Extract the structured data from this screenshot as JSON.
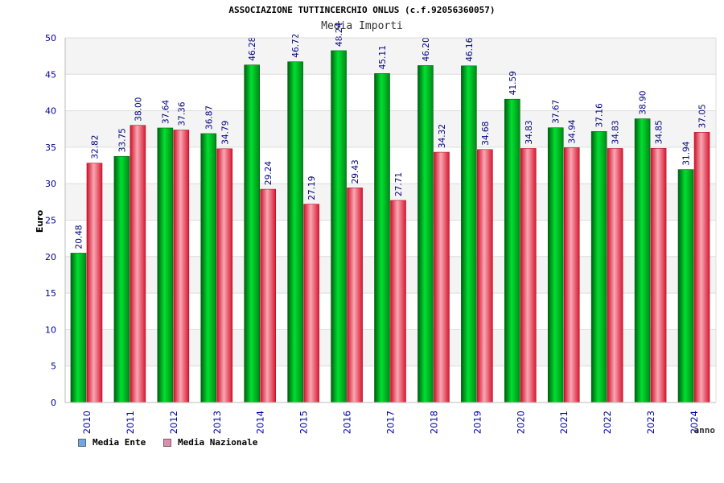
{
  "colors": {
    "ente": "#00b020",
    "nazionale": "#e8283c",
    "legend_ente": "#6fa8e8",
    "legend_nazionale": "#e08cb0",
    "axis_text": "#0000a0",
    "label_text": "#000080"
  },
  "chart_data": {
    "type": "bar",
    "title": "ASSOCIAZIONE TUTTINCERCHIO ONLUS (c.f.92056360057)",
    "subtitle": "Media Importi",
    "xlabel": "anno",
    "ylabel": "Euro",
    "ylim": [
      0,
      50
    ],
    "yticks": [
      "0",
      "5",
      "10",
      "15",
      "20",
      "25",
      "30",
      "35",
      "40",
      "45",
      "50"
    ],
    "grid": true,
    "legend_position": "bottom-left",
    "categories": [
      "2010",
      "2011",
      "2012",
      "2013",
      "2014",
      "2015",
      "2016",
      "2017",
      "2018",
      "2019",
      "2020",
      "2021",
      "2022",
      "2023",
      "2024"
    ],
    "series": [
      {
        "name": "Media Ente",
        "values": [
          20.48,
          33.75,
          37.64,
          36.87,
          46.28,
          46.72,
          48.24,
          45.11,
          46.2,
          46.16,
          41.59,
          37.67,
          37.16,
          38.9,
          31.94
        ],
        "labels": [
          "20.48",
          "33.75",
          "37.64",
          "36.87",
          "46.28",
          "46.72",
          "48.24",
          "45.11",
          "46.20",
          "46.16",
          "41.59",
          "37.67",
          "37.16",
          "38.90",
          "31.94"
        ]
      },
      {
        "name": "Media Nazionale",
        "values": [
          32.82,
          38.0,
          37.36,
          34.79,
          29.24,
          27.19,
          29.43,
          27.71,
          34.32,
          34.68,
          34.83,
          34.94,
          34.83,
          34.85,
          37.05
        ],
        "labels": [
          "32.82",
          "38.00",
          "37.36",
          "34.79",
          "29.24",
          "27.19",
          "29.43",
          "27.71",
          "34.32",
          "34.68",
          "34.83",
          "34.94",
          "34.83",
          "34.85",
          "37.05"
        ]
      }
    ]
  }
}
